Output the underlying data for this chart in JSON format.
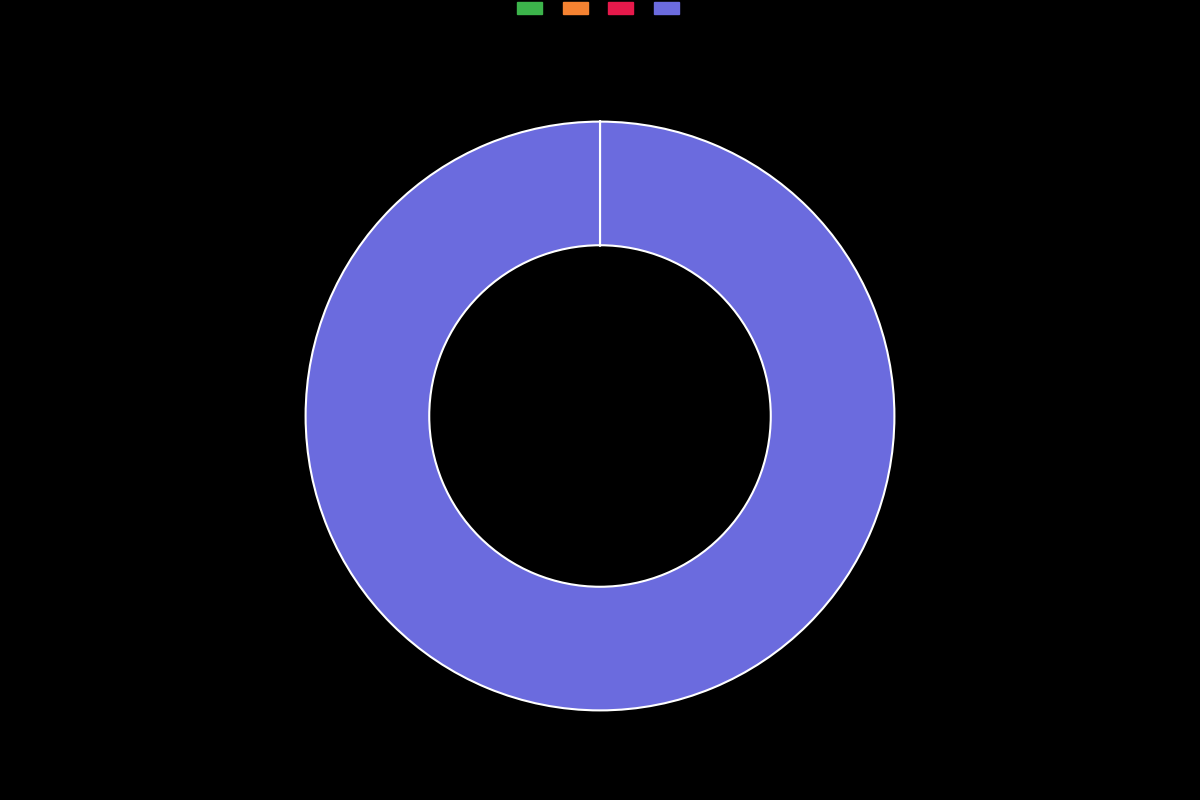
{
  "values": [
    0.001,
    0.001,
    0.001,
    99.997
  ],
  "colors": [
    "#3cb44b",
    "#f58231",
    "#e6194b",
    "#6b6bde"
  ],
  "legend_colors": [
    "#3cb44b",
    "#f58231",
    "#e6194b",
    "#6b6bde"
  ],
  "legend_labels": [
    "",
    "",
    "",
    ""
  ],
  "background_color": "#000000",
  "wedge_edge_color": "#ffffff",
  "wedge_linewidth": 1.5,
  "donut_width": 0.42,
  "start_angle": 90,
  "figsize": [
    12.0,
    8.0
  ],
  "dpi": 100
}
